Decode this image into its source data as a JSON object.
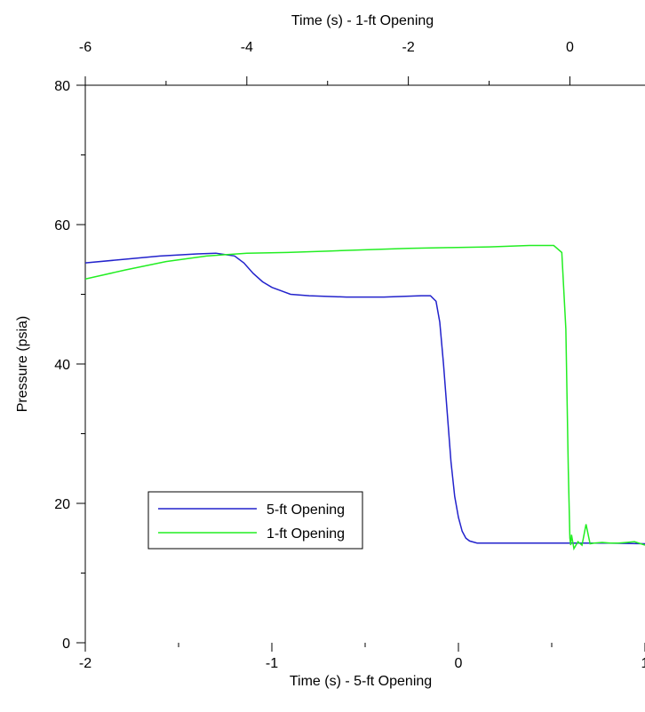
{
  "chart_data": {
    "type": "line",
    "title": "",
    "xlabel": "Time (s) - 5-ft Opening",
    "x2label": "Time (s) - 1-ft Opening",
    "ylabel": "Pressure (psia)",
    "xlim": [
      -2,
      1
    ],
    "x2lim": [
      -6,
      0.93
    ],
    "ylim": [
      0,
      80
    ],
    "x_ticks": [
      -2,
      -1,
      0,
      1
    ],
    "x_tick_labels": [
      "-2",
      "-1",
      "0",
      "1"
    ],
    "x2_ticks": [
      -6,
      -4,
      -2,
      0
    ],
    "x2_tick_labels": [
      "-6",
      "-4",
      "-2",
      "0"
    ],
    "y_ticks": [
      0,
      20,
      40,
      60,
      80
    ],
    "y_tick_labels": [
      "0",
      "20",
      "40",
      "60",
      "80"
    ],
    "grid": false,
    "legend_position": "lower-left",
    "series": [
      {
        "name": "5-ft Opening",
        "color": "#2222cc",
        "axis": "bottom",
        "x": [
          -2.0,
          -1.8,
          -1.6,
          -1.4,
          -1.3,
          -1.2,
          -1.15,
          -1.1,
          -1.05,
          -1.0,
          -0.95,
          -0.9,
          -0.8,
          -0.6,
          -0.4,
          -0.2,
          -0.15,
          -0.12,
          -0.1,
          -0.08,
          -0.06,
          -0.04,
          -0.02,
          0.0,
          0.02,
          0.04,
          0.06,
          0.1,
          0.15,
          0.2,
          0.4,
          0.6,
          0.8,
          1.0
        ],
        "y": [
          54.5,
          55.0,
          55.5,
          55.8,
          55.9,
          55.5,
          54.5,
          53.0,
          51.8,
          51.0,
          50.5,
          50.0,
          49.8,
          49.6,
          49.6,
          49.8,
          49.8,
          49.0,
          46.0,
          40.0,
          33.0,
          26.0,
          21.0,
          18.0,
          16.0,
          15.0,
          14.6,
          14.3,
          14.3,
          14.3,
          14.3,
          14.3,
          14.3,
          14.2
        ]
      },
      {
        "name": "1-ft Opening",
        "color": "#22ee22",
        "axis": "top",
        "x": [
          -6.0,
          -5.5,
          -5.0,
          -4.5,
          -4.0,
          -3.5,
          -3.0,
          -2.5,
          -2.0,
          -1.5,
          -1.0,
          -0.5,
          -0.2,
          -0.1,
          -0.05,
          -0.02,
          0.0,
          0.01,
          0.02,
          0.05,
          0.1,
          0.15,
          0.2,
          0.25,
          0.3,
          0.4,
          0.5,
          0.6,
          0.7,
          0.8,
          0.93
        ],
        "y": [
          52.2,
          53.5,
          54.7,
          55.5,
          55.9,
          56.0,
          56.2,
          56.4,
          56.6,
          56.7,
          56.8,
          57.0,
          57.0,
          56.0,
          45.0,
          25.0,
          15.0,
          14.0,
          15.5,
          13.5,
          14.5,
          14.0,
          17.0,
          14.2,
          14.3,
          14.4,
          14.3,
          14.3,
          14.4,
          14.5,
          14.0
        ]
      }
    ]
  }
}
